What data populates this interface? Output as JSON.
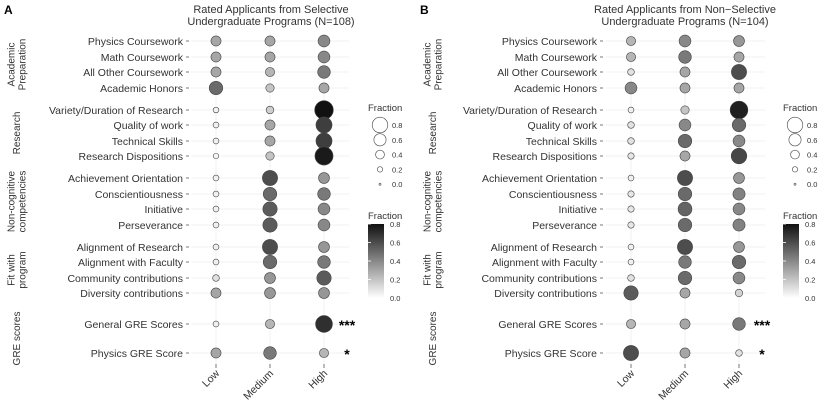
{
  "colors": {
    "low_fraction": "#ffffff",
    "high_fraction": "#111111",
    "grid": "#e6e6e6"
  },
  "chart_data": [
    {
      "type": "scatter",
      "panel_label": "A",
      "title_line1": "Rated Applicants from Selective",
      "title_line2": "Undergraduate Programs (N=108)",
      "x": [
        "Low",
        "Medium",
        "High"
      ],
      "groups": [
        {
          "label_lines": [
            "Academic",
            "Preparation"
          ],
          "items": [
            {
              "label": "Physics Coursework",
              "values": [
                0.3,
                0.3,
                0.4
              ]
            },
            {
              "label": "Math Coursework",
              "values": [
                0.3,
                0.3,
                0.4
              ]
            },
            {
              "label": "All Other Coursework",
              "values": [
                0.3,
                0.25,
                0.45
              ]
            },
            {
              "label": "Academic Honors",
              "values": [
                0.5,
                0.2,
                0.3
              ]
            }
          ]
        },
        {
          "label_lines": [
            "Research"
          ],
          "items": [
            {
              "label": "Variety/Duration of Research",
              "values": [
                0.04,
                0.16,
                0.8
              ]
            },
            {
              "label": "Quality of work",
              "values": [
                0.05,
                0.3,
                0.65
              ]
            },
            {
              "label": "Technical Skills",
              "values": [
                0.05,
                0.3,
                0.65
              ]
            },
            {
              "label": "Research Dispositions",
              "values": [
                0.03,
                0.2,
                0.77
              ]
            }
          ]
        },
        {
          "label_lines": [
            "Non-cognitive",
            "competencies"
          ],
          "items": [
            {
              "label": "Achievement Orientation",
              "values": [
                0.05,
                0.6,
                0.35
              ]
            },
            {
              "label": "Conscientiousness",
              "values": [
                0.05,
                0.5,
                0.45
              ]
            },
            {
              "label": "Initiative",
              "values": [
                0.05,
                0.55,
                0.4
              ]
            },
            {
              "label": "Perseverance",
              "values": [
                0.05,
                0.55,
                0.4
              ]
            }
          ]
        },
        {
          "label_lines": [
            "Fit with",
            "program"
          ],
          "items": [
            {
              "label": "Alignment of Research",
              "values": [
                0.05,
                0.6,
                0.35
              ]
            },
            {
              "label": "Alignment with Faculty",
              "values": [
                0.05,
                0.5,
                0.45
              ]
            },
            {
              "label": "Community contributions",
              "values": [
                0.1,
                0.35,
                0.55
              ]
            },
            {
              "label": "Diversity contributions",
              "values": [
                0.3,
                0.35,
                0.35
              ]
            }
          ]
        },
        {
          "label_lines": [
            "GRE scores"
          ],
          "items": [
            {
              "label": "General GRE Scores",
              "values": [
                0.05,
                0.25,
                0.7
              ],
              "annotation": "***"
            },
            {
              "label": "Physics GRE Score",
              "values": [
                0.3,
                0.45,
                0.25
              ],
              "annotation": "*"
            }
          ]
        }
      ]
    },
    {
      "type": "scatter",
      "panel_label": "B",
      "title_line1": "Rated Applicants from Non−Selective",
      "title_line2": "Undergraduate Programs (N=104)",
      "x": [
        "Low",
        "Medium",
        "High"
      ],
      "groups": [
        {
          "label_lines": [
            "Academic",
            "Preparation"
          ],
          "items": [
            {
              "label": "Physics Coursework",
              "values": [
                0.25,
                0.4,
                0.35
              ]
            },
            {
              "label": "Math Coursework",
              "values": [
                0.25,
                0.45,
                0.3
              ]
            },
            {
              "label": "All Other Coursework",
              "values": [
                0.1,
                0.3,
                0.6
              ]
            },
            {
              "label": "Academic Honors",
              "values": [
                0.4,
                0.3,
                0.3
              ]
            }
          ]
        },
        {
          "label_lines": [
            "Research"
          ],
          "items": [
            {
              "label": "Variety/Duration of Research",
              "values": [
                0.05,
                0.2,
                0.75
              ]
            },
            {
              "label": "Quality of work",
              "values": [
                0.1,
                0.4,
                0.5
              ]
            },
            {
              "label": "Technical Skills",
              "values": [
                0.1,
                0.5,
                0.4
              ]
            },
            {
              "label": "Research Dispositions",
              "values": [
                0.08,
                0.3,
                0.62
              ]
            }
          ]
        },
        {
          "label_lines": [
            "Non-cognitive",
            "competencies"
          ],
          "items": [
            {
              "label": "Achievement Orientation",
              "values": [
                0.05,
                0.6,
                0.35
              ]
            },
            {
              "label": "Conscientiousness",
              "values": [
                0.08,
                0.5,
                0.42
              ]
            },
            {
              "label": "Initiative",
              "values": [
                0.08,
                0.52,
                0.4
              ]
            },
            {
              "label": "Perseverance",
              "values": [
                0.08,
                0.5,
                0.42
              ]
            }
          ]
        },
        {
          "label_lines": [
            "Fit with",
            "program"
          ],
          "items": [
            {
              "label": "Alignment of Research",
              "values": [
                0.05,
                0.6,
                0.35
              ]
            },
            {
              "label": "Alignment with Faculty",
              "values": [
                0.05,
                0.45,
                0.5
              ]
            },
            {
              "label": "Community contributions",
              "values": [
                0.1,
                0.5,
                0.4
              ]
            },
            {
              "label": "Diversity contributions",
              "values": [
                0.55,
                0.3,
                0.15
              ]
            }
          ]
        },
        {
          "label_lines": [
            "GRE scores"
          ],
          "items": [
            {
              "label": "General GRE Scores",
              "values": [
                0.25,
                0.3,
                0.45
              ],
              "annotation": "***"
            },
            {
              "label": "Physics GRE Score",
              "values": [
                0.6,
                0.3,
                0.1
              ],
              "annotation": "*"
            }
          ]
        }
      ]
    }
  ],
  "legends": {
    "size_title": "Fraction",
    "size_levels": [
      0.8,
      0.6,
      0.4,
      0.2,
      0.0
    ],
    "size_labels": [
      "0.8",
      "0.6",
      "0.4",
      "0.2",
      "0.0"
    ],
    "color_title": "Fraction",
    "color_labels": [
      "0.8",
      "0.6",
      "0.4",
      "0.2",
      "0.0"
    ],
    "color_range": [
      0,
      0.8
    ]
  }
}
